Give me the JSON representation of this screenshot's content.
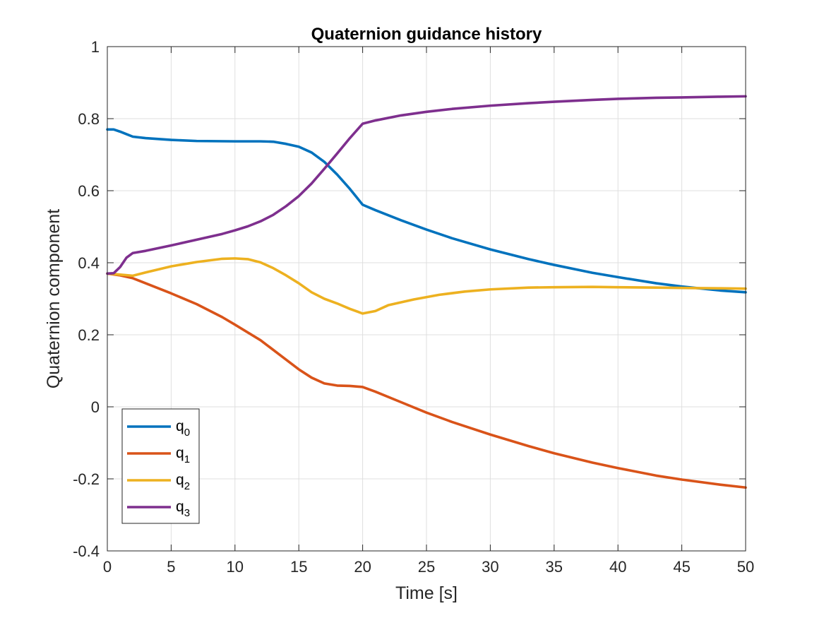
{
  "chart_data": {
    "type": "line",
    "title": "Quaternion guidance history",
    "xlabel": "Time [s]",
    "ylabel": "Quaternion component",
    "xlim": [
      0,
      50
    ],
    "ylim": [
      -0.4,
      1
    ],
    "xticks": [
      0,
      5,
      10,
      15,
      20,
      25,
      30,
      35,
      40,
      45,
      50
    ],
    "yticks": [
      -0.4,
      -0.2,
      0,
      0.2,
      0.4,
      0.6,
      0.8,
      1
    ],
    "ytick_labels": [
      "-0.4",
      "-0.2",
      "0",
      "0.2",
      "0.4",
      "0.6",
      "0.8",
      "1"
    ],
    "grid": true,
    "legend_position": "bottom-left",
    "series": [
      {
        "name": "q",
        "subscript": "0",
        "color": "#0072BD",
        "points": [
          [
            0,
            0.77
          ],
          [
            0.5,
            0.77
          ],
          [
            1,
            0.764
          ],
          [
            1.5,
            0.757
          ],
          [
            2,
            0.75
          ],
          [
            3,
            0.746
          ],
          [
            5,
            0.741
          ],
          [
            7,
            0.738
          ],
          [
            10,
            0.737
          ],
          [
            12,
            0.737
          ],
          [
            13,
            0.736
          ],
          [
            14,
            0.73
          ],
          [
            15,
            0.722
          ],
          [
            16,
            0.706
          ],
          [
            17,
            0.68
          ],
          [
            18,
            0.645
          ],
          [
            19,
            0.605
          ],
          [
            20,
            0.561
          ],
          [
            21,
            0.546
          ],
          [
            23,
            0.518
          ],
          [
            25,
            0.492
          ],
          [
            27,
            0.468
          ],
          [
            30,
            0.437
          ],
          [
            33,
            0.41
          ],
          [
            35,
            0.394
          ],
          [
            38,
            0.372
          ],
          [
            40,
            0.36
          ],
          [
            43,
            0.343
          ],
          [
            45,
            0.334
          ],
          [
            48,
            0.323
          ],
          [
            50,
            0.318
          ]
        ]
      },
      {
        "name": "q",
        "subscript": "1",
        "color": "#D95319",
        "points": [
          [
            0,
            0.37
          ],
          [
            1,
            0.365
          ],
          [
            2,
            0.357
          ],
          [
            3,
            0.343
          ],
          [
            5,
            0.315
          ],
          [
            7,
            0.285
          ],
          [
            9,
            0.249
          ],
          [
            10,
            0.228
          ],
          [
            12,
            0.185
          ],
          [
            14,
            0.131
          ],
          [
            15,
            0.104
          ],
          [
            16,
            0.081
          ],
          [
            17,
            0.065
          ],
          [
            18,
            0.059
          ],
          [
            19,
            0.058
          ],
          [
            20,
            0.055
          ],
          [
            21,
            0.042
          ],
          [
            23,
            0.013
          ],
          [
            25,
            -0.016
          ],
          [
            27,
            -0.042
          ],
          [
            30,
            -0.077
          ],
          [
            33,
            -0.109
          ],
          [
            35,
            -0.129
          ],
          [
            38,
            -0.155
          ],
          [
            40,
            -0.17
          ],
          [
            43,
            -0.191
          ],
          [
            45,
            -0.202
          ],
          [
            48,
            -0.216
          ],
          [
            50,
            -0.224
          ]
        ]
      },
      {
        "name": "q",
        "subscript": "2",
        "color": "#EDB120",
        "points": [
          [
            0,
            0.37
          ],
          [
            1,
            0.367
          ],
          [
            2,
            0.364
          ],
          [
            3,
            0.373
          ],
          [
            5,
            0.39
          ],
          [
            7,
            0.402
          ],
          [
            9,
            0.411
          ],
          [
            10,
            0.412
          ],
          [
            11,
            0.41
          ],
          [
            12,
            0.401
          ],
          [
            13,
            0.385
          ],
          [
            14,
            0.365
          ],
          [
            15,
            0.343
          ],
          [
            16,
            0.318
          ],
          [
            17,
            0.3
          ],
          [
            18,
            0.287
          ],
          [
            19,
            0.272
          ],
          [
            20,
            0.259
          ],
          [
            21,
            0.266
          ],
          [
            22,
            0.282
          ],
          [
            24,
            0.298
          ],
          [
            26,
            0.311
          ],
          [
            28,
            0.32
          ],
          [
            30,
            0.326
          ],
          [
            33,
            0.331
          ],
          [
            35,
            0.332
          ],
          [
            38,
            0.333
          ],
          [
            40,
            0.332
          ],
          [
            43,
            0.331
          ],
          [
            45,
            0.33
          ],
          [
            48,
            0.329
          ],
          [
            50,
            0.328
          ]
        ]
      },
      {
        "name": "q",
        "subscript": "3",
        "color": "#7E2F8E",
        "points": [
          [
            0,
            0.37
          ],
          [
            0.5,
            0.371
          ],
          [
            1,
            0.388
          ],
          [
            1.5,
            0.414
          ],
          [
            2,
            0.427
          ],
          [
            3,
            0.433
          ],
          [
            5,
            0.448
          ],
          [
            7,
            0.464
          ],
          [
            9,
            0.48
          ],
          [
            10,
            0.49
          ],
          [
            11,
            0.501
          ],
          [
            12,
            0.515
          ],
          [
            13,
            0.533
          ],
          [
            14,
            0.557
          ],
          [
            15,
            0.585
          ],
          [
            16,
            0.62
          ],
          [
            17,
            0.661
          ],
          [
            18,
            0.703
          ],
          [
            19,
            0.746
          ],
          [
            20,
            0.786
          ],
          [
            21,
            0.795
          ],
          [
            23,
            0.809
          ],
          [
            25,
            0.819
          ],
          [
            27,
            0.827
          ],
          [
            30,
            0.836
          ],
          [
            33,
            0.843
          ],
          [
            35,
            0.847
          ],
          [
            38,
            0.852
          ],
          [
            40,
            0.855
          ],
          [
            43,
            0.858
          ],
          [
            45,
            0.859
          ],
          [
            48,
            0.861
          ],
          [
            50,
            0.862
          ]
        ]
      }
    ]
  }
}
